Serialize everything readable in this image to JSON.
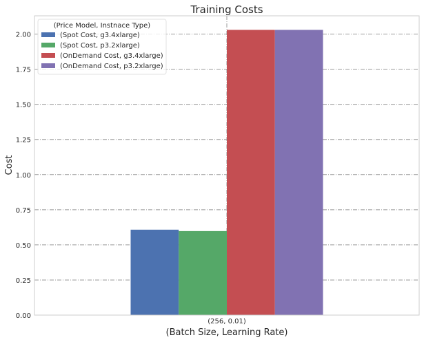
{
  "chart_data": {
    "type": "bar",
    "title": "Training Costs",
    "xlabel": "(Batch Size, Learning Rate)",
    "ylabel": "Cost",
    "categories": [
      "(256, 0.01)"
    ],
    "series": [
      {
        "name": "(Spot Cost, g3.4xlarge)",
        "values": [
          0.608
        ],
        "color": "#4c72b0"
      },
      {
        "name": "(Spot Cost, p3.2xlarge)",
        "values": [
          0.598
        ],
        "color": "#55a868"
      },
      {
        "name": "(OnDemand Cost, g3.4xlarge)",
        "values": [
          2.03
        ],
        "color": "#c44e52"
      },
      {
        "name": "(OnDemand Cost, p3.2xlarge)",
        "values": [
          2.03
        ],
        "color": "#8172b2"
      }
    ],
    "ylim": [
      0,
      2.13
    ],
    "yticks": [
      "0.00",
      "0.25",
      "0.50",
      "0.75",
      "1.00",
      "1.25",
      "1.50",
      "1.75",
      "2.00"
    ],
    "grid": true,
    "grid_style": "dash-dot",
    "legend": {
      "title": "(Price Model, Instnace Type)",
      "placement": "top-left"
    }
  }
}
